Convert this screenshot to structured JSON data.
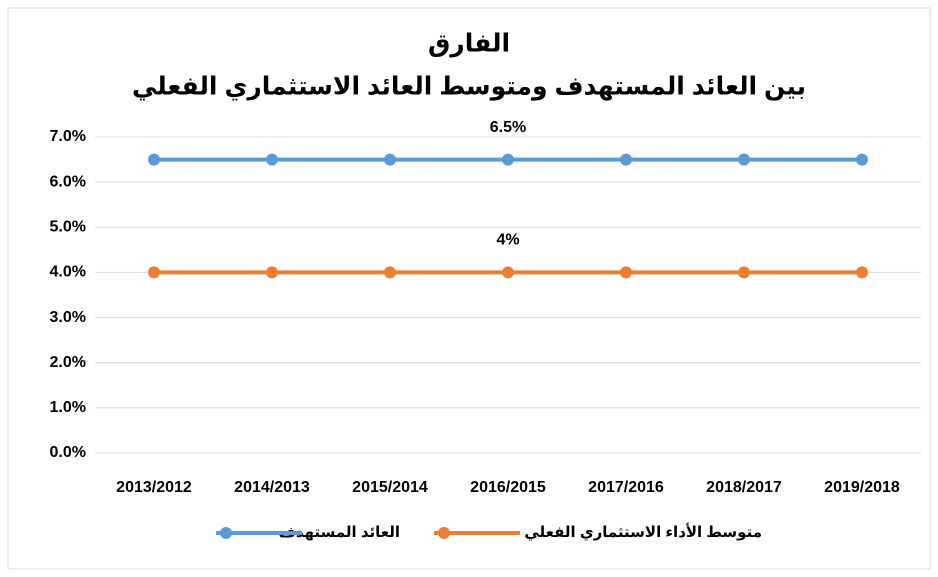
{
  "chart_data": {
    "type": "line",
    "title": "الفارق",
    "subtitle": "بين العائد المستهدف ومتوسط العائد الاستثماري الفعلي",
    "categories": [
      "2013/2012",
      "2014/2013",
      "2015/2014",
      "2016/2015",
      "2017/2016",
      "2018/2017",
      "2019/2018"
    ],
    "series": [
      {
        "name": "العائد المستهدف",
        "color": "#5b9bd5",
        "values": [
          6.5,
          6.5,
          6.5,
          6.5,
          6.5,
          6.5,
          6.5
        ],
        "value_labels": [
          null,
          null,
          null,
          "6.5%",
          null,
          null,
          null
        ]
      },
      {
        "name": "متوسط الأداء الاستثماري الفعلي",
        "color": "#ed7d31",
        "values": [
          4,
          4,
          4,
          4,
          4,
          4,
          4
        ],
        "value_labels": [
          null,
          null,
          null,
          "4%",
          null,
          null,
          null
        ]
      }
    ],
    "ylim": [
      0,
      7
    ],
    "yticks": [
      {
        "value": 0,
        "label": "0.0%"
      },
      {
        "value": 1,
        "label": "1.0%"
      },
      {
        "value": 2,
        "label": "2.0%"
      },
      {
        "value": 3,
        "label": "3.0%"
      },
      {
        "value": 4,
        "label": "4.0%"
      },
      {
        "value": 5,
        "label": "5.0%"
      },
      {
        "value": 6,
        "label": "6.0%"
      },
      {
        "value": 7,
        "label": "7.0%"
      }
    ],
    "grid": true,
    "legend": "bottom"
  }
}
